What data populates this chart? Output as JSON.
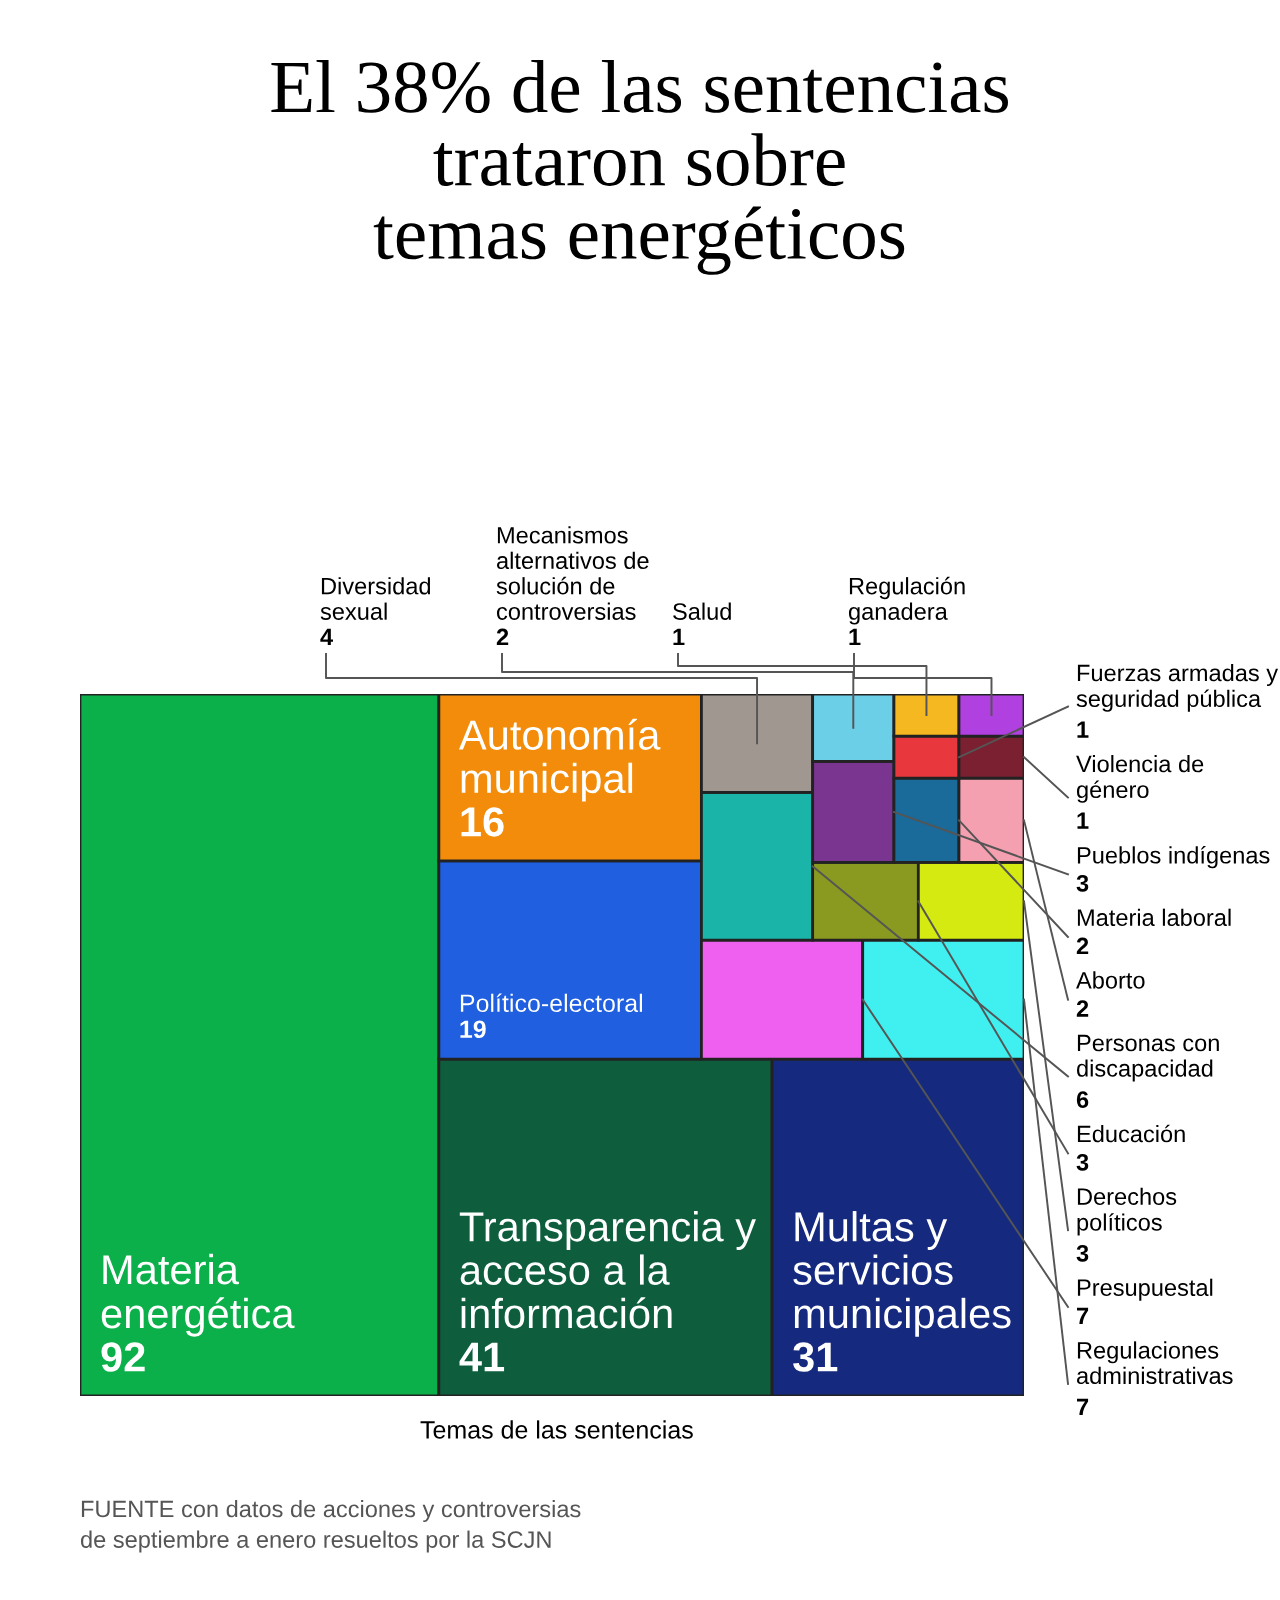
{
  "chart_data": {
    "type": "other",
    "title": "El 38% de las sentencias\ntrataron sobre\ntemas energéticos",
    "categories": [
      "Materia energética",
      "Transparencia y acceso a la información",
      "Multas y servicios municipales",
      "Político-electoral",
      "Autonomía municipal",
      "Presupuestal",
      "Regulaciones administrativas",
      "Personas con discapacidad",
      "Diversidad sexual",
      "Educación",
      "Derechos políticos",
      "Pueblos indígenas",
      "Mecanismos alternativos de solución de controversias",
      "Materia laboral",
      "Aborto",
      "Fuerzas armadas y seguridad pública",
      "Salud",
      "Violencia de género",
      "Regulación ganadera"
    ],
    "values": [
      92,
      41,
      31,
      19,
      16,
      7,
      7,
      6,
      4,
      3,
      3,
      3,
      2,
      2,
      2,
      1,
      1,
      1,
      1
    ],
    "colors": [
      "#0bb04a",
      "#0e5e3e",
      "#152a7e",
      "#1f5fe0",
      "#f28c0a",
      "#f060f0",
      "#40f0f0",
      "#1ab5a8",
      "#a09890",
      "#8a9a20",
      "#d4ea10",
      "#7a3590",
      "#6ccfe8",
      "#1a6a9a",
      "#f4a0b0",
      "#e8383d",
      "#f5b820",
      "#7a2030",
      "#b040e0"
    ],
    "data_labels": true,
    "annotations": [
      "Temas de las sentencias",
      "FUENTE con datos de acciones y controversias\nde septiembre a enero resueltos por la SCJN"
    ]
  }
}
